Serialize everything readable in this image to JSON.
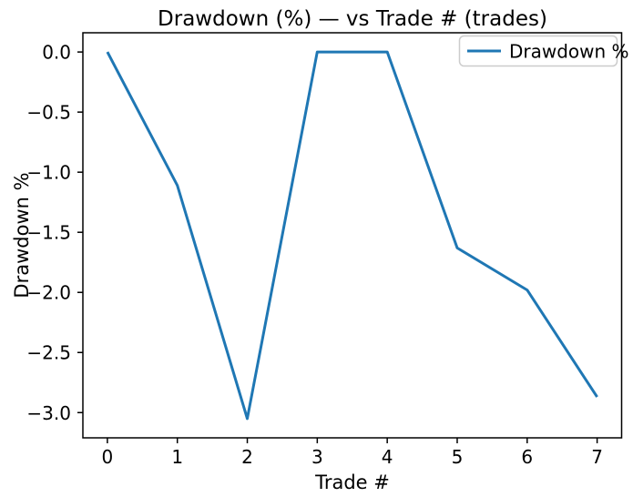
{
  "chart_data": {
    "type": "line",
    "title": "Drawdown (%) — vs Trade # (trades)",
    "xlabel": "Trade #",
    "ylabel": "Drawdown %",
    "x": [
      0,
      1,
      2,
      3,
      4,
      5,
      6,
      7
    ],
    "series": [
      {
        "name": "Drawdown %",
        "color": "#1f77b4",
        "values": [
          0.0,
          -1.11,
          -3.05,
          0.0,
          0.0,
          -1.63,
          -1.98,
          -2.87
        ]
      }
    ],
    "xlim": [
      -0.35,
      7.35
    ],
    "ylim": [
      -3.21,
      0.16
    ],
    "xtick_values": [
      0,
      1,
      2,
      3,
      4,
      5,
      6,
      7
    ],
    "xtick_labels": [
      "0",
      "1",
      "2",
      "3",
      "4",
      "5",
      "6",
      "7"
    ],
    "ytick_values": [
      0,
      -0.5,
      -1,
      -1.5,
      -2,
      -2.5,
      -3
    ],
    "ytick_labels": [
      "0.0",
      "−0.5",
      "−1.0",
      "−1.5",
      "−2.0",
      "−2.5",
      "−3.0"
    ],
    "legend": {
      "position": "upper right",
      "entries": [
        {
          "label": "Drawdown %",
          "color": "#1f77b4"
        }
      ]
    },
    "grid": false,
    "background": "#ffffff",
    "axis_color": "#000000",
    "legend_border_color": "#cccccc"
  }
}
